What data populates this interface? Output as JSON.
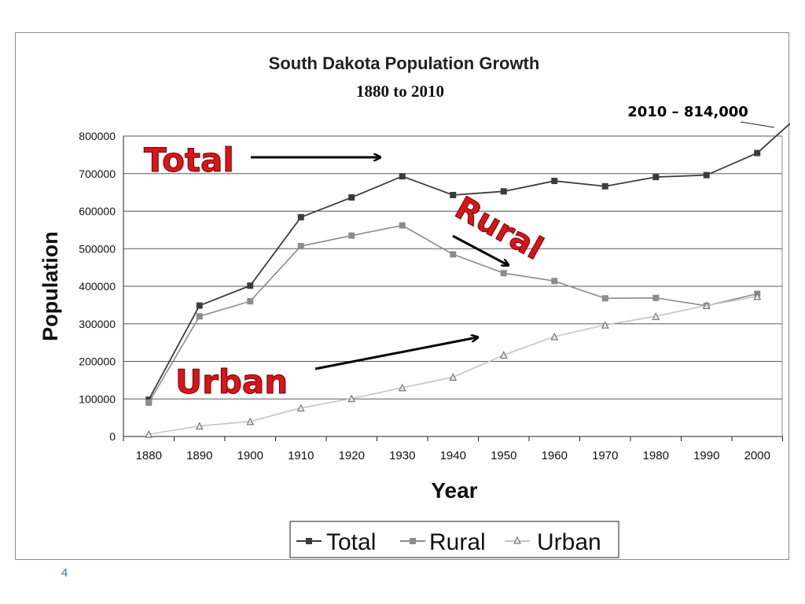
{
  "slide": {
    "page_number": "4"
  },
  "annotations": {
    "callout_2010": "2010 – 814,000",
    "total_label": "Total",
    "rural_label": "Rural",
    "urban_label": "Urban"
  },
  "colors": {
    "total": "#3c3c3c",
    "rural": "#8c8c8c",
    "urban": "#c4c4c4",
    "annotation_red": "#d9141b",
    "grid": "#5a5a5a"
  },
  "chart_data": {
    "type": "line",
    "title": "South Dakota Population Growth",
    "subtitle": "1880 to 2010",
    "xlabel": "Year",
    "ylabel": "Population",
    "categories": [
      "1880",
      "1890",
      "1900",
      "1910",
      "1920",
      "1930",
      "1940",
      "1950",
      "1960",
      "1970",
      "1980",
      "1990",
      "2000"
    ],
    "ylim": [
      0,
      800000
    ],
    "yticks": [
      0,
      100000,
      200000,
      300000,
      400000,
      500000,
      600000,
      700000,
      800000
    ],
    "grid": true,
    "legend_position": "bottom",
    "series": [
      {
        "name": "Total",
        "marker": "square",
        "values": [
          98000,
          348600,
          401600,
          583900,
          636500,
          692800,
          643000,
          652700,
          680500,
          666300,
          690800,
          696000,
          754800
        ]
      },
      {
        "name": "Rural",
        "marker": "square",
        "values": [
          90000,
          320000,
          360000,
          507000,
          535000,
          562000,
          485000,
          435000,
          414000,
          368000,
          369000,
          348000,
          380000
        ]
      },
      {
        "name": "Urban",
        "marker": "triangle",
        "values": [
          6000,
          28000,
          40000,
          76000,
          101000,
          130000,
          158000,
          217000,
          266000,
          297000,
          320000,
          349000,
          373000
        ]
      }
    ]
  }
}
